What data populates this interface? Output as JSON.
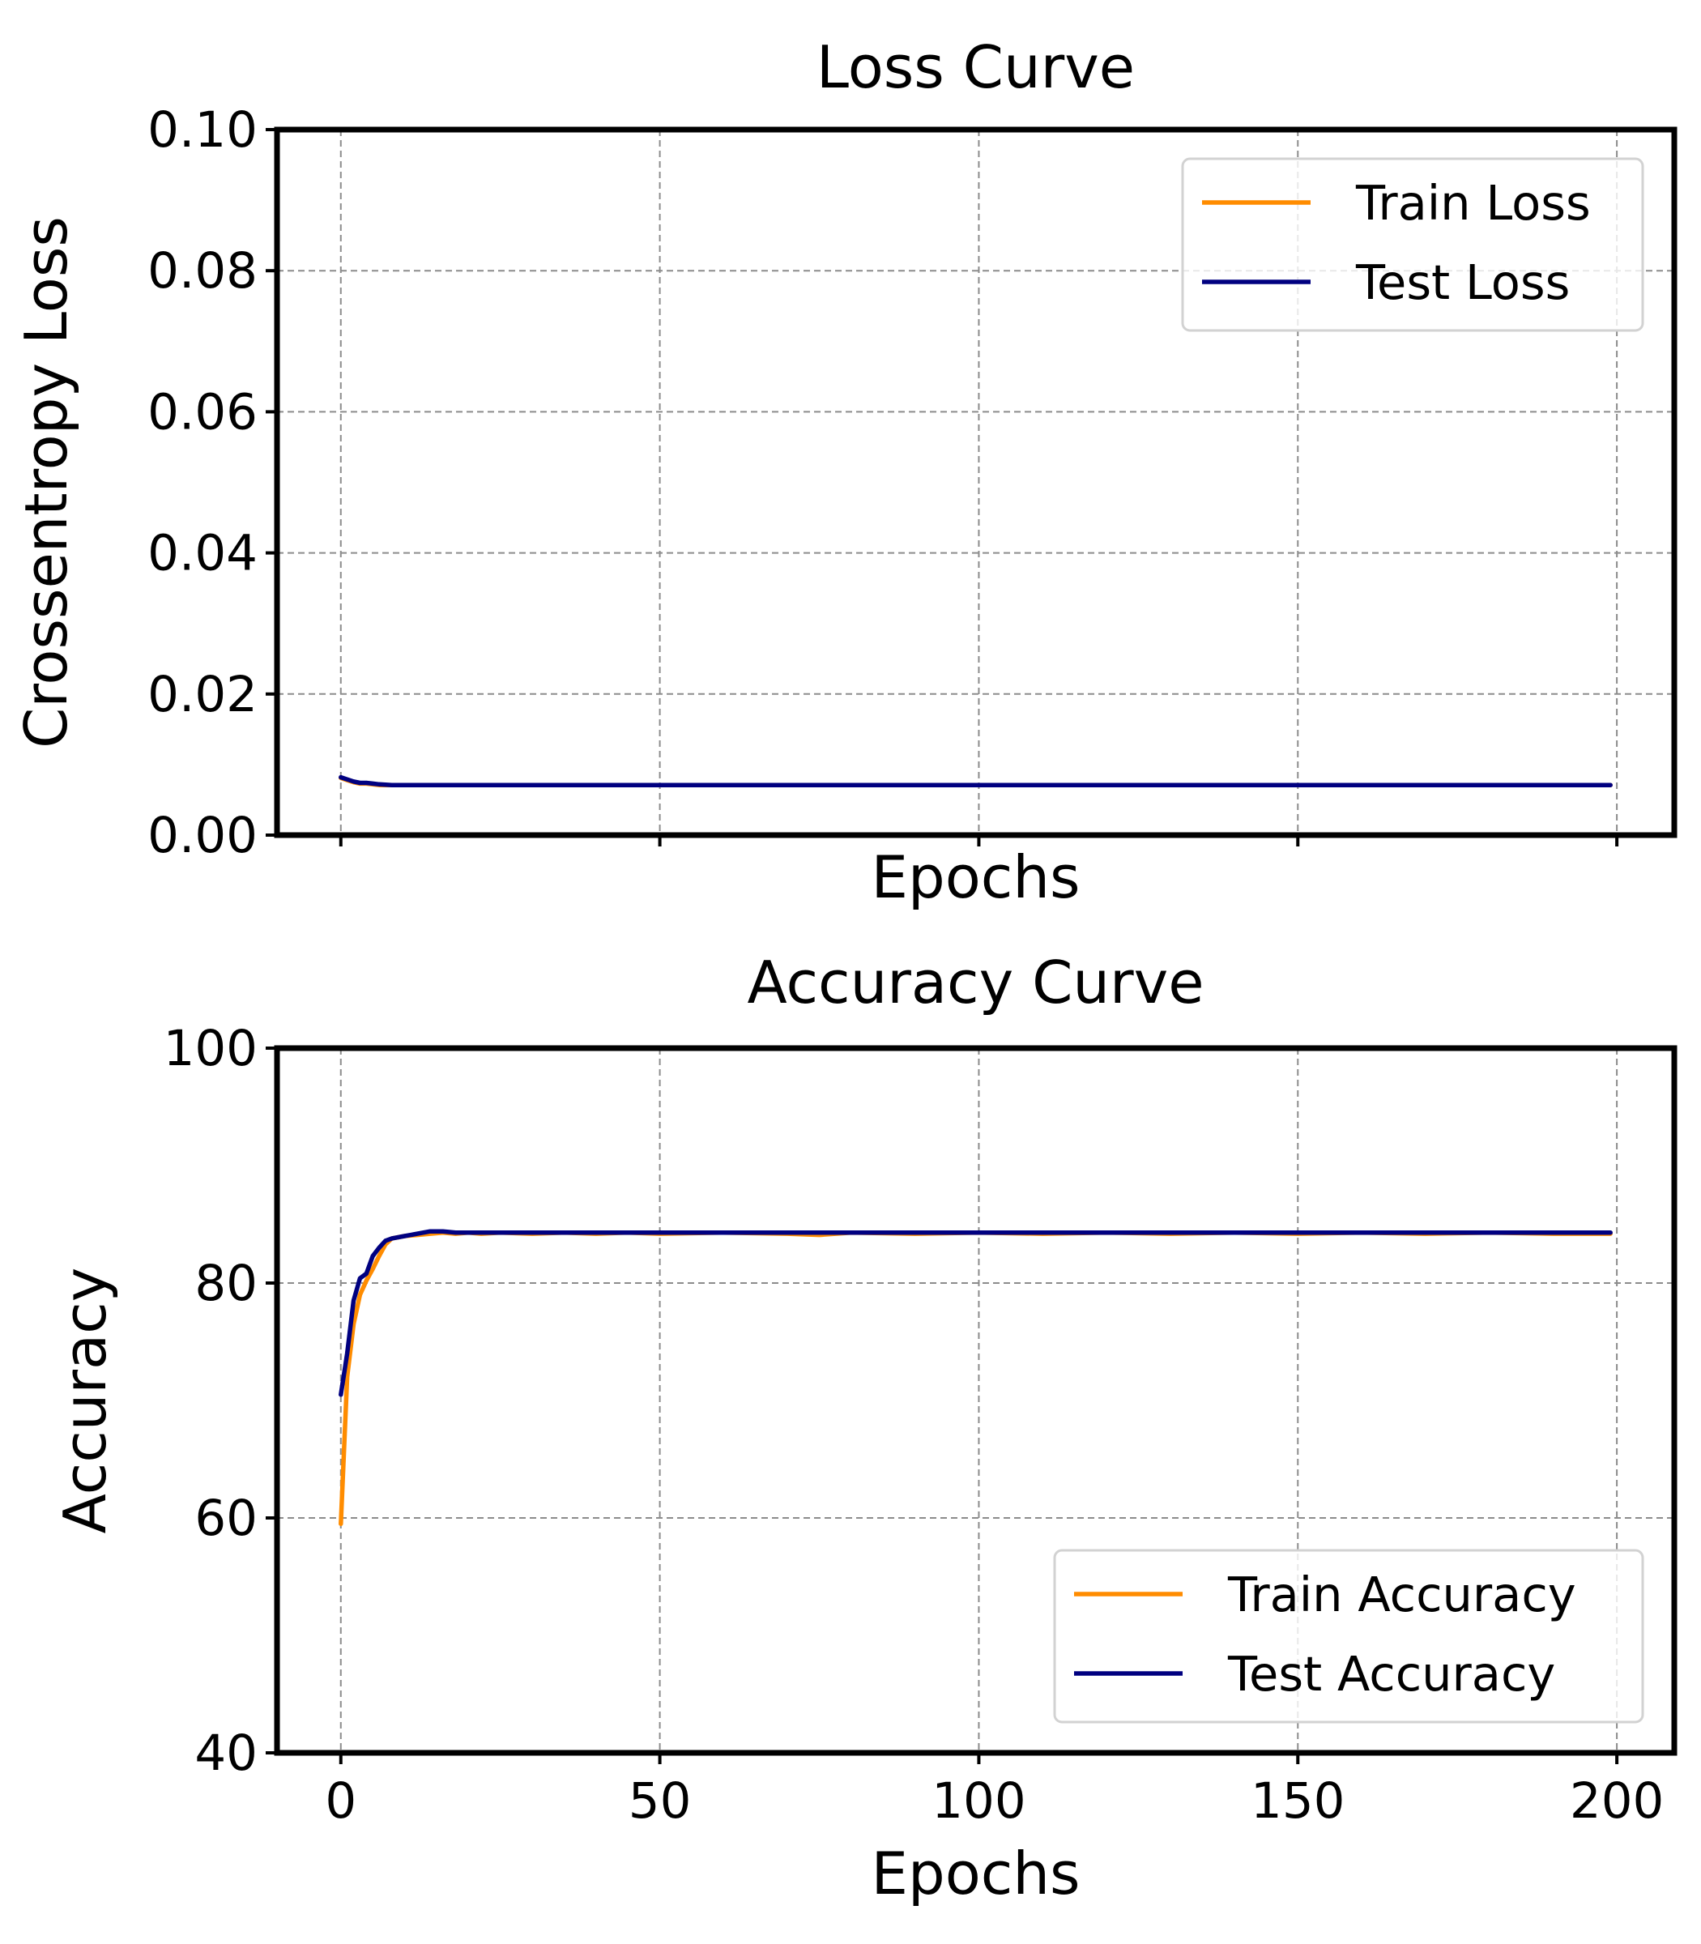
{
  "chart_data": [
    {
      "type": "line",
      "title": "Loss Curve",
      "xlabel": "Epochs",
      "ylabel": "Crossentropy Loss",
      "xlim": [
        -10,
        209
      ],
      "ylim": [
        0,
        0.1
      ],
      "x_ticks": [
        0,
        50,
        100,
        150,
        200
      ],
      "x_tick_labels": [
        "",
        "",
        "",
        "",
        ""
      ],
      "y_ticks": [
        0,
        0.02,
        0.04,
        0.06,
        0.08,
        0.1
      ],
      "y_tick_labels": [
        "0.00",
        "0.02",
        "0.04",
        "0.06",
        "0.08",
        "0.10"
      ],
      "grid": true,
      "legend_position": "top-right",
      "series": [
        {
          "name": "Train Loss",
          "color": "#ff8c00",
          "x": [
            0,
            1,
            2,
            3,
            4,
            5,
            6,
            8,
            10,
            15,
            20,
            30,
            50,
            100,
            150,
            199
          ],
          "y": [
            0.0081,
            0.0078,
            0.0075,
            0.0073,
            0.0073,
            0.0072,
            0.0071,
            0.0071,
            0.0071,
            0.0071,
            0.0071,
            0.0071,
            0.0071,
            0.0071,
            0.0071,
            0.0071
          ]
        },
        {
          "name": "Test Loss",
          "color": "#000080",
          "x": [
            0,
            1,
            2,
            3,
            4,
            5,
            6,
            8,
            10,
            15,
            20,
            30,
            50,
            100,
            150,
            199
          ],
          "y": [
            0.0082,
            0.0079,
            0.0076,
            0.0074,
            0.0074,
            0.0073,
            0.0072,
            0.0071,
            0.0071,
            0.0071,
            0.0071,
            0.0071,
            0.0071,
            0.0071,
            0.0071,
            0.0071
          ]
        }
      ]
    },
    {
      "type": "line",
      "title": "Accuracy Curve",
      "xlabel": "Epochs",
      "ylabel": "Accuracy",
      "xlim": [
        -10,
        209
      ],
      "ylim": [
        40,
        100
      ],
      "x_ticks": [
        0,
        50,
        100,
        150,
        200
      ],
      "x_tick_labels": [
        "0",
        "50",
        "100",
        "150",
        "200"
      ],
      "y_ticks": [
        40,
        60,
        80,
        100
      ],
      "y_tick_labels": [
        "40",
        "60",
        "80",
        "100"
      ],
      "grid": true,
      "legend_position": "lower-right",
      "series": [
        {
          "name": "Train Accuracy",
          "color": "#ff8c00",
          "x": [
            0,
            1,
            2,
            3,
            4,
            5,
            6,
            7,
            8,
            10,
            12,
            14,
            16,
            18,
            20,
            22,
            25,
            30,
            35,
            40,
            45,
            50,
            60,
            70,
            75,
            80,
            90,
            100,
            110,
            120,
            130,
            140,
            150,
            160,
            170,
            180,
            190,
            199
          ],
          "y": [
            59.5,
            72.0,
            76.5,
            79.0,
            80.2,
            81.2,
            82.3,
            83.3,
            83.8,
            84.0,
            84.1,
            84.2,
            84.3,
            84.2,
            84.3,
            84.2,
            84.3,
            84.2,
            84.3,
            84.2,
            84.3,
            84.2,
            84.3,
            84.2,
            84.1,
            84.3,
            84.2,
            84.3,
            84.2,
            84.3,
            84.2,
            84.3,
            84.2,
            84.3,
            84.2,
            84.3,
            84.2,
            84.2
          ]
        },
        {
          "name": "Test Accuracy",
          "color": "#000080",
          "x": [
            0,
            1,
            2,
            3,
            4,
            5,
            6,
            7,
            8,
            10,
            12,
            14,
            16,
            18,
            20,
            22,
            25,
            30,
            35,
            40,
            45,
            50,
            60,
            70,
            75,
            80,
            90,
            100,
            110,
            120,
            130,
            140,
            150,
            160,
            170,
            180,
            190,
            199
          ],
          "y": [
            70.5,
            74.0,
            78.5,
            80.4,
            80.8,
            82.3,
            83.0,
            83.6,
            83.8,
            84.0,
            84.2,
            84.4,
            84.4,
            84.3,
            84.3,
            84.3,
            84.3,
            84.3,
            84.3,
            84.3,
            84.3,
            84.3,
            84.3,
            84.3,
            84.3,
            84.3,
            84.3,
            84.3,
            84.3,
            84.3,
            84.3,
            84.3,
            84.3,
            84.3,
            84.3,
            84.3,
            84.3,
            84.3
          ]
        }
      ]
    }
  ]
}
